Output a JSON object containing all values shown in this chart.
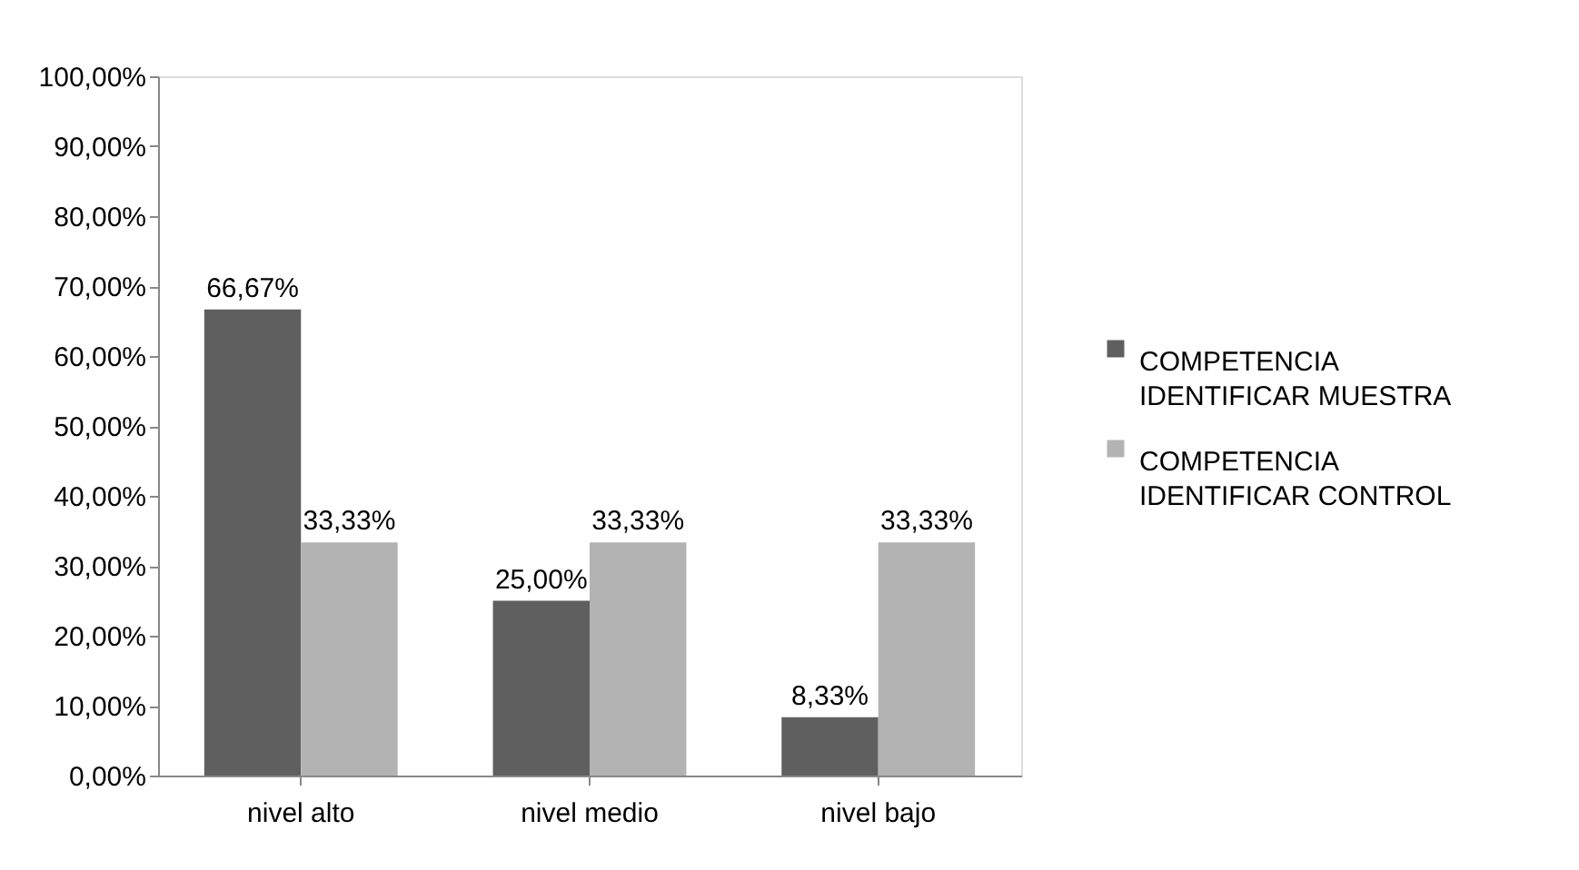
{
  "chart_data": {
    "type": "bar",
    "categories": [
      "nivel alto",
      "nivel medio",
      "nivel bajo"
    ],
    "series": [
      {
        "name": "COMPETENCIA IDENTIFICAR MUESTRA",
        "color": "#5f5f5f",
        "values": [
          66.67,
          25.0,
          8.33
        ],
        "value_labels": [
          "66,67%",
          "25,00%",
          "8,33%"
        ]
      },
      {
        "name": "COMPETENCIA IDENTIFICAR CONTROL",
        "color": "#b3b3b3",
        "values": [
          33.33,
          33.33,
          33.33
        ],
        "value_labels": [
          "33,33%",
          "33,33%",
          "33,33%"
        ]
      }
    ],
    "ylim": [
      0,
      100
    ],
    "yticks": [
      {
        "value": 0,
        "label": "0,00%"
      },
      {
        "value": 10,
        "label": "10,00%"
      },
      {
        "value": 20,
        "label": "20,00%"
      },
      {
        "value": 30,
        "label": "30,00%"
      },
      {
        "value": 40,
        "label": "40,00%"
      },
      {
        "value": 50,
        "label": "50,00%"
      },
      {
        "value": 60,
        "label": "60,00%"
      },
      {
        "value": 70,
        "label": "70,00%"
      },
      {
        "value": 80,
        "label": "80,00%"
      },
      {
        "value": 90,
        "label": "90,00%"
      },
      {
        "value": 100,
        "label": "100,00%"
      }
    ],
    "grid": false,
    "legend": "right"
  }
}
